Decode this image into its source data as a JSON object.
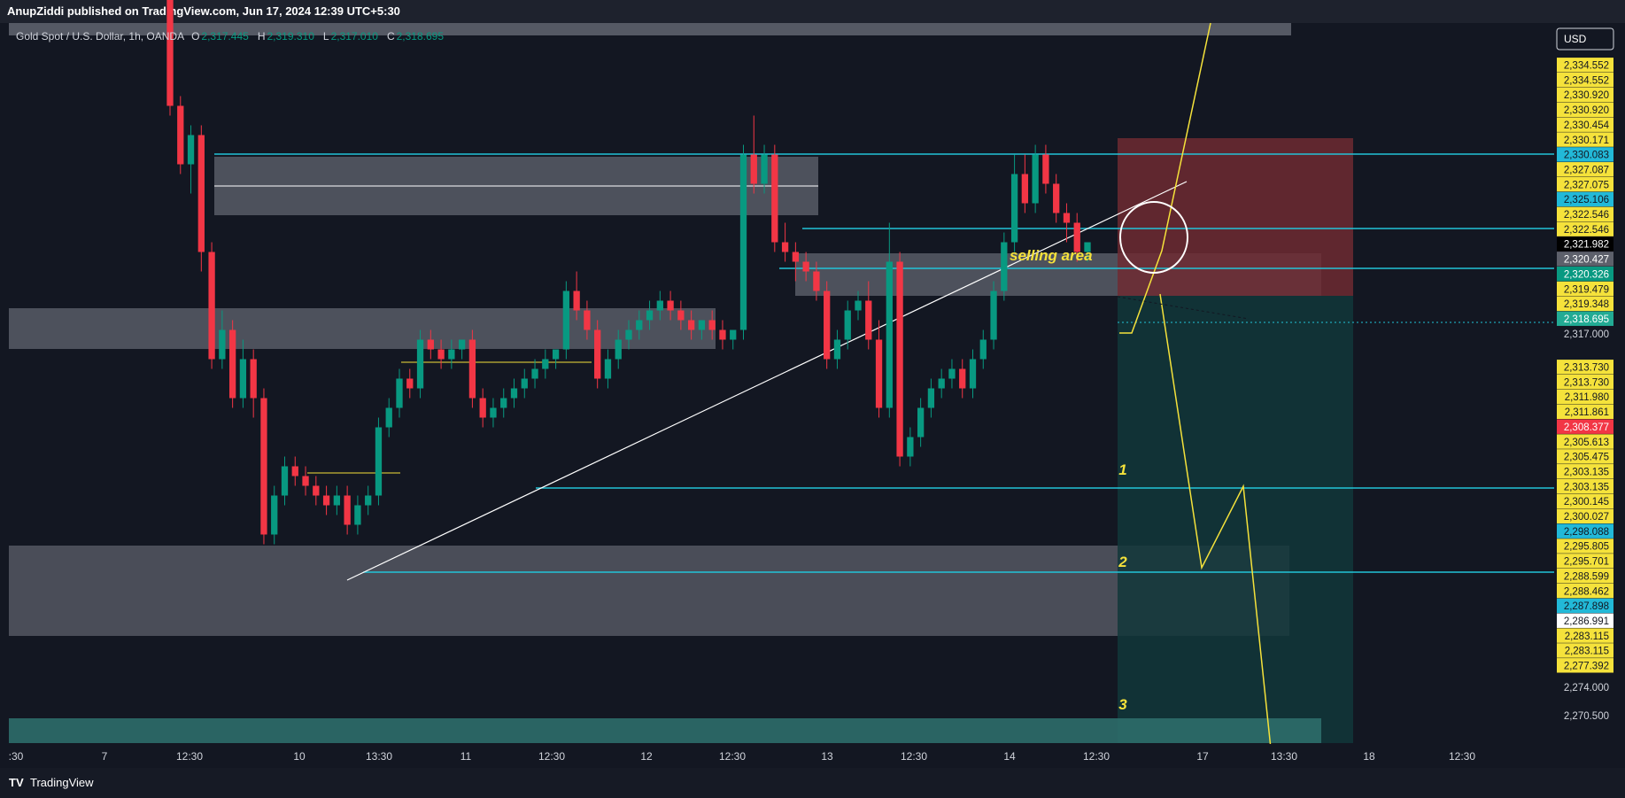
{
  "header": {
    "publisher_line": "AnupZiddi published on TradingView.com, Jun 17, 2024 12:39 UTC+5:30"
  },
  "footer": {
    "logo_mark": "TV",
    "brand": "TradingView"
  },
  "colors": {
    "background": "#131722",
    "bull": "#089981",
    "bear": "#f23645",
    "cyan_line": "#22c4d8",
    "yellow": "#f5e23b",
    "zone_gray": "#5d606b",
    "stop_zone": "#6e2a31",
    "target_zone": "#12373a"
  },
  "chart_data": {
    "type": "candlestick",
    "instrument": {
      "name": "Gold Spot / U.S. Dollar, 1h, OANDA",
      "ohlc_prefix": [
        "O",
        "H",
        "L",
        "C"
      ],
      "ohlc_values": [
        "2,317.445",
        "2,319.310",
        "2,317.010",
        "2,318.695"
      ]
    },
    "currency": "USD",
    "x_ticks": [
      ":30",
      "7",
      "12:30",
      "10",
      "13:30",
      "11",
      "12:30",
      "12",
      "12:30",
      "13",
      "12:30",
      "14",
      "12:30",
      "17",
      "13:30",
      "18",
      "12:30"
    ],
    "y_range": [
      2266.5,
      2340.5
    ],
    "y_axis_labels": [
      {
        "value": 2334.552,
        "text": "2,334.552",
        "style": "yellow"
      },
      {
        "value": 2334.552,
        "text": "2,334.552",
        "style": "yellow"
      },
      {
        "value": 2330.92,
        "text": "2,330.920",
        "style": "yellow"
      },
      {
        "value": 2330.92,
        "text": "2,330.920",
        "style": "yellow"
      },
      {
        "value": 2330.454,
        "text": "2,330.454",
        "style": "yellow"
      },
      {
        "value": 2330.171,
        "text": "2,330.171",
        "style": "yellow"
      },
      {
        "value": 2330.083,
        "text": "2,330.083",
        "style": "cyan"
      },
      {
        "value": 2327.087,
        "text": "2,327.087",
        "style": "yellow"
      },
      {
        "value": 2327.075,
        "text": "2,327.075",
        "style": "yellow"
      },
      {
        "value": 2325.106,
        "text": "2,325.106",
        "style": "cyan"
      },
      {
        "value": 2322.546,
        "text": "2,322.546",
        "style": "yellow"
      },
      {
        "value": 2322.546,
        "text": "2,322.546",
        "style": "yellow"
      },
      {
        "value": 2321.982,
        "text": "2,321.982",
        "style": "black"
      },
      {
        "value": 2320.427,
        "text": "2,320.427",
        "style": "gray"
      },
      {
        "value": 2320.326,
        "text": "2,320.326",
        "style": "green"
      },
      {
        "value": 2319.479,
        "text": "2,319.479",
        "style": "yellow"
      },
      {
        "value": 2319.348,
        "text": "2,319.348",
        "style": "yellow"
      },
      {
        "value": 2318.695,
        "text": "2,318.695",
        "style": "teal"
      },
      {
        "value": 2317.0,
        "text": "2,317.000",
        "style": "plain"
      },
      {
        "value": 2313.73,
        "text": "2,313.730",
        "style": "yellow"
      },
      {
        "value": 2313.73,
        "text": "2,313.730",
        "style": "yellow"
      },
      {
        "value": 2311.98,
        "text": "2,311.980",
        "style": "yellow"
      },
      {
        "value": 2311.861,
        "text": "2,311.861",
        "style": "yellow"
      },
      {
        "value": 2308.377,
        "text": "2,308.377",
        "style": "red"
      },
      {
        "value": 2305.613,
        "text": "2,305.613",
        "style": "yellow"
      },
      {
        "value": 2305.475,
        "text": "2,305.475",
        "style": "yellow"
      },
      {
        "value": 2303.135,
        "text": "2,303.135",
        "style": "yellow"
      },
      {
        "value": 2303.135,
        "text": "2,303.135",
        "style": "yellow"
      },
      {
        "value": 2300.145,
        "text": "2,300.145",
        "style": "yellow"
      },
      {
        "value": 2300.027,
        "text": "2,300.027",
        "style": "yellow"
      },
      {
        "value": 2298.088,
        "text": "2,298.088",
        "style": "cyan"
      },
      {
        "value": 2295.805,
        "text": "2,295.805",
        "style": "yellow"
      },
      {
        "value": 2295.701,
        "text": "2,295.701",
        "style": "yellow"
      },
      {
        "value": 2288.599,
        "text": "2,288.599",
        "style": "yellow"
      },
      {
        "value": 2288.462,
        "text": "2,288.462",
        "style": "yellow"
      },
      {
        "value": 2287.898,
        "text": "2,287.898",
        "style": "cyan"
      },
      {
        "value": 2286.991,
        "text": "2,286.991",
        "style": "white"
      },
      {
        "value": 2283.115,
        "text": "2,283.115",
        "style": "yellow"
      },
      {
        "value": 2283.115,
        "text": "2,283.115",
        "style": "yellow"
      },
      {
        "value": 2277.392,
        "text": "2,277.392",
        "style": "yellow"
      },
      {
        "value": 2274.0,
        "text": "2,274.000",
        "style": "plain"
      },
      {
        "value": 2270.5,
        "text": "2,270.500",
        "style": "plain"
      }
    ],
    "candles": [
      [
        2343.0,
        2345.0,
        2331.0,
        2332.0
      ],
      [
        2332.0,
        2333.0,
        2325.0,
        2326.0
      ],
      [
        2326.0,
        2330.0,
        2323.0,
        2329.0
      ],
      [
        2329.0,
        2330.0,
        2315.0,
        2317.0
      ],
      [
        2317.0,
        2318.0,
        2305.0,
        2306.0
      ],
      [
        2306.0,
        2311.0,
        2305.0,
        2309.0
      ],
      [
        2309.0,
        2310.0,
        2301.0,
        2302.0
      ],
      [
        2302.0,
        2308.0,
        2301.0,
        2306.0
      ],
      [
        2306.0,
        2307.0,
        2300.0,
        2302.0
      ],
      [
        2302.0,
        2303.0,
        2287.0,
        2288.0
      ],
      [
        2288.0,
        2293.0,
        2287.0,
        2292.0
      ],
      [
        2292.0,
        2296.0,
        2291.0,
        2295.0
      ],
      [
        2295.0,
        2296.0,
        2293.0,
        2294.0
      ],
      [
        2294.0,
        2295.0,
        2292.0,
        2293.0
      ],
      [
        2293.0,
        2294.0,
        2291.0,
        2292.0
      ],
      [
        2292.0,
        2293.0,
        2290.0,
        2291.0
      ],
      [
        2291.0,
        2293.0,
        2290.0,
        2292.0
      ],
      [
        2292.0,
        2293.0,
        2288.0,
        2289.0
      ],
      [
        2289.0,
        2292.0,
        2288.0,
        2291.0
      ],
      [
        2291.0,
        2293.0,
        2290.0,
        2292.0
      ],
      [
        2292.0,
        2300.0,
        2291.0,
        2299.0
      ],
      [
        2299.0,
        2302.0,
        2298.0,
        2301.0
      ],
      [
        2301.0,
        2305.0,
        2300.0,
        2304.0
      ],
      [
        2304.0,
        2305.0,
        2302.0,
        2303.0
      ],
      [
        2303.0,
        2309.0,
        2302.0,
        2308.0
      ],
      [
        2308.0,
        2309.0,
        2306.0,
        2307.0
      ],
      [
        2307.0,
        2308.0,
        2305.0,
        2306.0
      ],
      [
        2306.0,
        2308.0,
        2305.0,
        2307.0
      ],
      [
        2307.0,
        2308.0,
        2306.0,
        2308.0
      ],
      [
        2308.0,
        2309.0,
        2301.0,
        2302.0
      ],
      [
        2302.0,
        2303.0,
        2299.0,
        2300.0
      ],
      [
        2300.0,
        2302.0,
        2299.0,
        2301.0
      ],
      [
        2301.0,
        2303.0,
        2300.0,
        2302.0
      ],
      [
        2302.0,
        2304.0,
        2301.0,
        2303.0
      ],
      [
        2303.0,
        2305.0,
        2302.0,
        2304.0
      ],
      [
        2304.0,
        2306.0,
        2303.0,
        2305.0
      ],
      [
        2305.0,
        2307.0,
        2304.0,
        2306.0
      ],
      [
        2306.0,
        2307.0,
        2305.0,
        2307.0
      ],
      [
        2307.0,
        2314.0,
        2306.0,
        2313.0
      ],
      [
        2313.0,
        2315.0,
        2310.0,
        2311.0
      ],
      [
        2311.0,
        2312.0,
        2308.0,
        2309.0
      ],
      [
        2309.0,
        2310.0,
        2303.0,
        2304.0
      ],
      [
        2304.0,
        2307.0,
        2303.0,
        2306.0
      ],
      [
        2306.0,
        2309.0,
        2305.0,
        2308.0
      ],
      [
        2308.0,
        2310.0,
        2307.0,
        2309.0
      ],
      [
        2309.0,
        2311.0,
        2308.0,
        2310.0
      ],
      [
        2310.0,
        2312.0,
        2309.0,
        2311.0
      ],
      [
        2311.0,
        2313.0,
        2310.0,
        2312.0
      ],
      [
        2312.0,
        2313.0,
        2310.0,
        2311.0
      ],
      [
        2311.0,
        2312.0,
        2309.0,
        2310.0
      ],
      [
        2310.0,
        2311.0,
        2308.0,
        2309.0
      ],
      [
        2309.0,
        2310.0,
        2308.0,
        2310.0
      ],
      [
        2310.0,
        2311.0,
        2308.0,
        2309.0
      ],
      [
        2309.0,
        2310.0,
        2307.0,
        2308.0
      ],
      [
        2308.0,
        2309.0,
        2307.0,
        2309.0
      ],
      [
        2309.0,
        2328.0,
        2308.0,
        2327.0
      ],
      [
        2327.0,
        2331.0,
        2323.0,
        2324.0
      ],
      [
        2324.0,
        2328.0,
        2323.0,
        2327.0
      ],
      [
        2327.0,
        2328.0,
        2317.0,
        2318.0
      ],
      [
        2318.0,
        2320.0,
        2316.0,
        2317.0
      ],
      [
        2317.0,
        2318.0,
        2314.0,
        2316.0
      ],
      [
        2316.0,
        2317.0,
        2314.0,
        2315.0
      ],
      [
        2315.0,
        2316.0,
        2312.0,
        2313.0
      ],
      [
        2313.0,
        2314.0,
        2305.0,
        2306.0
      ],
      [
        2306.0,
        2309.0,
        2305.0,
        2308.0
      ],
      [
        2308.0,
        2312.0,
        2307.0,
        2311.0
      ],
      [
        2311.0,
        2313.0,
        2310.0,
        2312.0
      ],
      [
        2312.0,
        2314.0,
        2307.0,
        2308.0
      ],
      [
        2308.0,
        2310.0,
        2300.0,
        2301.0
      ],
      [
        2301.0,
        2320.0,
        2300.0,
        2316.0
      ],
      [
        2316.0,
        2317.0,
        2295.0,
        2296.0
      ],
      [
        2296.0,
        2299.0,
        2295.0,
        2298.0
      ],
      [
        2298.0,
        2302.0,
        2297.0,
        2301.0
      ],
      [
        2301.0,
        2304.0,
        2300.0,
        2303.0
      ],
      [
        2303.0,
        2305.0,
        2302.0,
        2304.0
      ],
      [
        2304.0,
        2306.0,
        2303.0,
        2305.0
      ],
      [
        2305.0,
        2306.0,
        2302.0,
        2303.0
      ],
      [
        2303.0,
        2307.0,
        2302.0,
        2306.0
      ],
      [
        2306.0,
        2309.0,
        2305.0,
        2308.0
      ],
      [
        2308.0,
        2314.0,
        2307.0,
        2313.0
      ],
      [
        2313.0,
        2319.0,
        2312.0,
        2318.0
      ],
      [
        2318.0,
        2327.0,
        2317.0,
        2325.0
      ],
      [
        2325.0,
        2327.0,
        2321.0,
        2322.0
      ],
      [
        2322.0,
        2328.0,
        2321.0,
        2327.0
      ],
      [
        2327.0,
        2328.0,
        2323.0,
        2324.0
      ],
      [
        2324.0,
        2325.0,
        2320.0,
        2321.0
      ],
      [
        2321.0,
        2322.0,
        2318.0,
        2320.0
      ],
      [
        2320.0,
        2321.0,
        2316.0,
        2317.0
      ],
      [
        2317.0,
        2318.0,
        2316.0,
        2318.0
      ]
    ],
    "annotations": [
      {
        "text": "selling area",
        "color": "#f5e23b"
      },
      {
        "text": "1",
        "color": "#f5e23b"
      },
      {
        "text": "2",
        "color": "#f5e23b"
      },
      {
        "text": "3",
        "color": "#f5e23b"
      }
    ],
    "cyan_levels": [
      2330.083,
      2325.106,
      2320.326,
      2298.088,
      2287.898
    ]
  }
}
